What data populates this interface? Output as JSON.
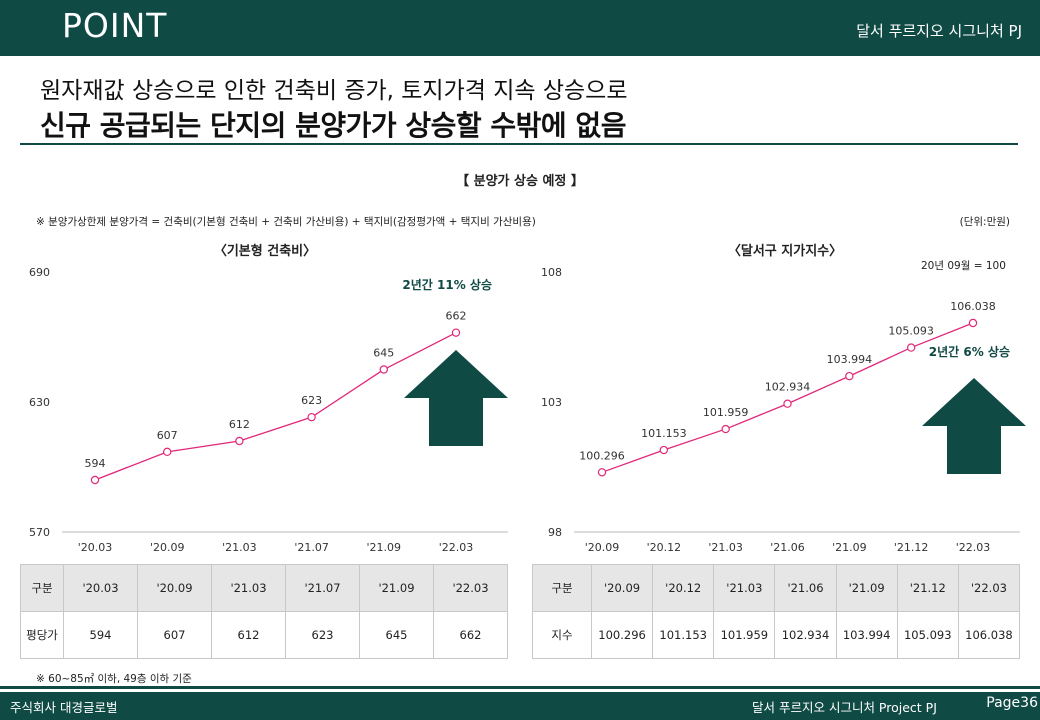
{
  "header": {
    "title": "POINT",
    "project": "달서 푸르지오 시그니처 PJ"
  },
  "headline": {
    "line1": "원자재값 상승으로 인한 건축비 증가, 토지가격 지속 상승으로",
    "line2": "신규 공급되는 단지의 분양가가 상승할 수밖에 없음"
  },
  "section_title": "【 분양가 상승 예정 】",
  "formula_note": "※ 분양가상한제 분양가격 = 건축비(기본형 건축비 + 건축비 가산비용) + 택지비(감정평가액 + 택지비 가산비용)",
  "unit_note": "(단위:만원)",
  "colors": {
    "brand": "#0f4a45",
    "line": "#e0287a",
    "arrow": "#0f4a45"
  },
  "chart_data": [
    {
      "type": "line",
      "title": "〈기본형 건축비〉",
      "categories": [
        "'20.03",
        "'20.09",
        "'21.03",
        "'21.07",
        "'21.09",
        "'22.03"
      ],
      "values": [
        594,
        607,
        612,
        623,
        645,
        662
      ],
      "value_labels": [
        "594",
        "607",
        "612",
        "623",
        "645",
        "662"
      ],
      "ylim": [
        570,
        690
      ],
      "yticks": [
        "690",
        "630",
        "570"
      ],
      "annotation": "2년간 11% 상승",
      "grid": false
    },
    {
      "type": "line",
      "title": "〈달서구 지가지수〉",
      "categories": [
        "'20.09",
        "'20.12",
        "'21.03",
        "'21.06",
        "'21.09",
        "'21.12",
        "'22.03"
      ],
      "values": [
        100.296,
        101.153,
        101.959,
        102.934,
        103.994,
        105.093,
        106.038
      ],
      "value_labels": [
        "100.296",
        "101.153",
        "101.959",
        "102.934",
        "103.994",
        "105.093",
        "106.038"
      ],
      "ylim": [
        98,
        108
      ],
      "yticks": [
        "108",
        "103",
        "98"
      ],
      "annotation": "2년간 6% 상승",
      "base_note": "20년 09월 = 100",
      "grid": false
    }
  ],
  "tables": {
    "left": {
      "header_label": "구분",
      "columns": [
        "'20.03",
        "'20.09",
        "'21.03",
        "'21.07",
        "'21.09",
        "'22.03"
      ],
      "row_label": "평당가",
      "values": [
        "594",
        "607",
        "612",
        "623",
        "645",
        "662"
      ]
    },
    "right": {
      "header_label": "구분",
      "columns": [
        "'20.09",
        "'20.12",
        "'21.03",
        "'21.06",
        "'21.09",
        "'21.12",
        "'22.03"
      ],
      "row_label": "지수",
      "values": [
        "100.296",
        "101.153",
        "101.959",
        "102.934",
        "103.994",
        "105.093",
        "106.038"
      ]
    }
  },
  "footnote": "※ 60~85㎡ 이하, 49층 이하 기준",
  "footer": {
    "company": "주식회사 대경글로벌",
    "project": "달서 푸르지오 시그니처 Project PJ",
    "page": "Page36"
  }
}
